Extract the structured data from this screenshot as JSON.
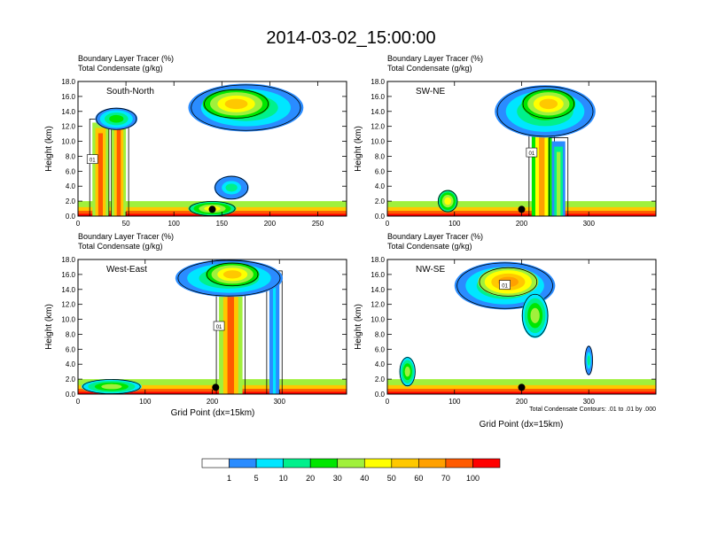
{
  "page_title": "2014-03-02_15:00:00",
  "colors": {
    "scale": [
      "#ffffff",
      "#2a8cff",
      "#00e6ff",
      "#00f08c",
      "#00e600",
      "#a0f03c",
      "#ffff00",
      "#ffc800",
      "#ffa000",
      "#ff5a00",
      "#ff0000"
    ],
    "contour": "#000000"
  },
  "common": {
    "tracer_label": "Boundary Layer Tracer   (%)",
    "condensate_label": "Total Condensate   (g/kg)",
    "ylabel": "Height (km)",
    "xlabel": "Grid Point (dx=15km)",
    "contour_note": "Total Condensate Contours: .01 to .01 by .000",
    "contour_tag": "01"
  },
  "colorbar": {
    "labels": [
      "1",
      "5",
      "10",
      "20",
      "30",
      "40",
      "50",
      "60",
      "70",
      "100"
    ]
  },
  "chart_data": [
    {
      "type": "heatmap",
      "name": "South-North",
      "ylim": [
        0,
        18
      ],
      "xlim": [
        0,
        280
      ],
      "xticks": [
        "0",
        "50",
        "100",
        "150",
        "200",
        "250"
      ],
      "xtick_values": [
        0,
        50,
        100,
        150,
        200,
        250
      ],
      "yticks": [
        "0.0",
        "2.0",
        "4.0",
        "6.0",
        "8.0",
        "10.0",
        "12.0",
        "14.0",
        "16.0",
        "18.0"
      ],
      "marker_x": 140,
      "features": [
        {
          "kind": "column",
          "x0": 15,
          "x1": 32,
          "ytop": 12.5,
          "level": 9
        },
        {
          "kind": "column",
          "x0": 35,
          "x1": 50,
          "ytop": 13.5,
          "level": 9
        },
        {
          "kind": "cloud",
          "cx": 40,
          "cy": 13,
          "rx": 22,
          "ry": 1.5,
          "level": 4
        },
        {
          "kind": "cloud",
          "cx": 175,
          "cy": 14.5,
          "rx": 60,
          "ry": 3.2,
          "level": 4
        },
        {
          "kind": "cloud",
          "cx": 165,
          "cy": 15,
          "rx": 35,
          "ry": 2,
          "level": 7
        },
        {
          "kind": "cloud",
          "cx": 160,
          "cy": 3.8,
          "rx": 18,
          "ry": 1.6,
          "level": 3
        },
        {
          "kind": "cloud",
          "cx": 140,
          "cy": 1,
          "rx": 25,
          "ry": 1,
          "level": 6
        }
      ]
    },
    {
      "type": "heatmap",
      "name": "SW-NE",
      "ylim": [
        0,
        18
      ],
      "xlim": [
        0,
        400
      ],
      "xticks": [
        "0",
        "100",
        "200",
        "300"
      ],
      "xtick_values": [
        0,
        100,
        200,
        300
      ],
      "yticks": [
        "0.0",
        "2.0",
        "4.0",
        "6.0",
        "8.0",
        "10.0",
        "12.0",
        "14.0",
        "16.0",
        "18.0"
      ],
      "marker_x": 200,
      "features": [
        {
          "kind": "column",
          "x0": 215,
          "x1": 245,
          "ytop": 14,
          "level": 8
        },
        {
          "kind": "column",
          "x0": 245,
          "x1": 265,
          "ytop": 10,
          "level": 5
        },
        {
          "kind": "cloud",
          "cx": 235,
          "cy": 14,
          "rx": 75,
          "ry": 3.5,
          "level": 4
        },
        {
          "kind": "cloud",
          "cx": 240,
          "cy": 15,
          "rx": 40,
          "ry": 2,
          "level": 7
        },
        {
          "kind": "cloud",
          "cx": 90,
          "cy": 2,
          "rx": 15,
          "ry": 1.5,
          "level": 6
        }
      ]
    },
    {
      "type": "heatmap",
      "name": "West-East",
      "ylim": [
        0,
        18
      ],
      "xlim": [
        0,
        400
      ],
      "xticks": [
        "0",
        "100",
        "200",
        "300"
      ],
      "xtick_values": [
        0,
        100,
        200,
        300
      ],
      "yticks": [
        "0.0",
        "2.0",
        "4.0",
        "6.0",
        "8.0",
        "10.0",
        "12.0",
        "14.0",
        "16.0",
        "18.0"
      ],
      "marker_x": 205,
      "features": [
        {
          "kind": "column",
          "x0": 210,
          "x1": 245,
          "ytop": 15,
          "level": 9
        },
        {
          "kind": "column",
          "x0": 285,
          "x1": 300,
          "ytop": 16,
          "level": 2
        },
        {
          "kind": "cloud",
          "cx": 225,
          "cy": 15.5,
          "rx": 80,
          "ry": 2.5,
          "level": 4
        },
        {
          "kind": "cloud",
          "cx": 230,
          "cy": 16,
          "rx": 40,
          "ry": 1.6,
          "level": 7
        },
        {
          "kind": "cloud",
          "cx": 50,
          "cy": 1,
          "rx": 45,
          "ry": 1,
          "level": 5
        }
      ]
    },
    {
      "type": "heatmap",
      "name": "NW-SE",
      "ylim": [
        0,
        18
      ],
      "xlim": [
        0,
        400
      ],
      "xticks": [
        "0",
        "100",
        "200",
        "300"
      ],
      "xtick_values": [
        0,
        100,
        200,
        300
      ],
      "yticks": [
        "0.0",
        "2.0",
        "4.0",
        "6.0",
        "8.0",
        "10.0",
        "12.0",
        "14.0",
        "16.0",
        "18.0"
      ],
      "marker_x": 200,
      "features": [
        {
          "kind": "cloud",
          "cx": 175,
          "cy": 14.5,
          "rx": 75,
          "ry": 3.2,
          "level": 4
        },
        {
          "kind": "cloud",
          "cx": 180,
          "cy": 15,
          "rx": 45,
          "ry": 2,
          "level": 8
        },
        {
          "kind": "cloud",
          "cx": 220,
          "cy": 10.5,
          "rx": 20,
          "ry": 3,
          "level": 5
        },
        {
          "kind": "cloud",
          "cx": 300,
          "cy": 4.5,
          "rx": 6,
          "ry": 2,
          "level": 3
        },
        {
          "kind": "cloud",
          "cx": 30,
          "cy": 3,
          "rx": 12,
          "ry": 2,
          "level": 5
        }
      ]
    }
  ]
}
